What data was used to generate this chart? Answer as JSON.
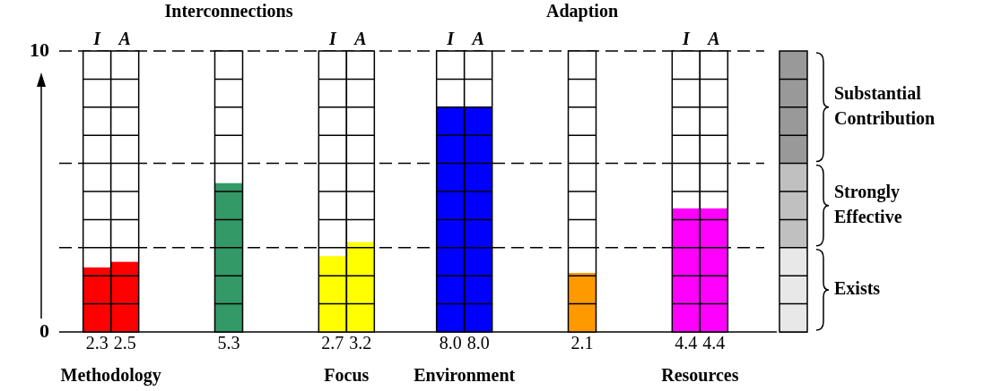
{
  "chart_data": [
    {
      "type": "bar",
      "categories": [
        "Methodology",
        "Interconnections",
        "Focus",
        "Environment",
        "Adaption",
        "Resources"
      ],
      "series": [
        {
          "name": "I",
          "values": [
            2.3,
            null,
            2.7,
            8.0,
            null,
            4.4
          ],
          "colors": [
            "#ff0000",
            null,
            "#ffff00",
            "#0000ff",
            null,
            "#ff00ff"
          ],
          "value_labels": [
            "2.3",
            null,
            "2.7",
            "8.0",
            null,
            "4.4"
          ]
        },
        {
          "name": "A",
          "values": [
            2.5,
            null,
            3.2,
            8.0,
            null,
            4.4
          ],
          "colors": [
            "#ff0000",
            null,
            "#ffff00",
            "#0000ff",
            null,
            "#ff00ff"
          ],
          "value_labels": [
            "2.5",
            null,
            "3.2",
            "8.0",
            null,
            "4.4"
          ]
        },
        {
          "values": [
            null,
            5.3,
            null,
            null,
            2.1,
            null
          ],
          "colors": [
            null,
            "#339966",
            null,
            null,
            "#ff9900",
            null
          ],
          "value_labels": [
            null,
            "5.3",
            null,
            null,
            "2.1",
            null
          ]
        }
      ],
      "ylim": [
        0,
        10
      ],
      "yticks": [
        0,
        10
      ],
      "grid": false,
      "legend": false,
      "ref_lines": [
        {
          "axis": "y",
          "value": 3,
          "line_style": "dashed",
          "color": "#000000"
        },
        {
          "axis": "y",
          "value": 6,
          "line_style": "dashed",
          "color": "#000000"
        },
        {
          "axis": "y",
          "value": 10,
          "line_style": "dashed",
          "color": "#000000"
        }
      ]
    },
    {
      "type": "bar",
      "stacked": true,
      "categories": [
        null
      ],
      "series": [
        {
          "name": "Exists",
          "color": "#e8e8e8",
          "values": [
            3
          ]
        },
        {
          "name": "Strongly Effective",
          "color": "#c0c0c0",
          "values": [
            3
          ]
        },
        {
          "name": "Substantial Contribution",
          "color": "#999999",
          "values": [
            4
          ]
        }
      ],
      "ylim": [
        0,
        10
      ],
      "grid": false,
      "legend": false
    }
  ]
}
